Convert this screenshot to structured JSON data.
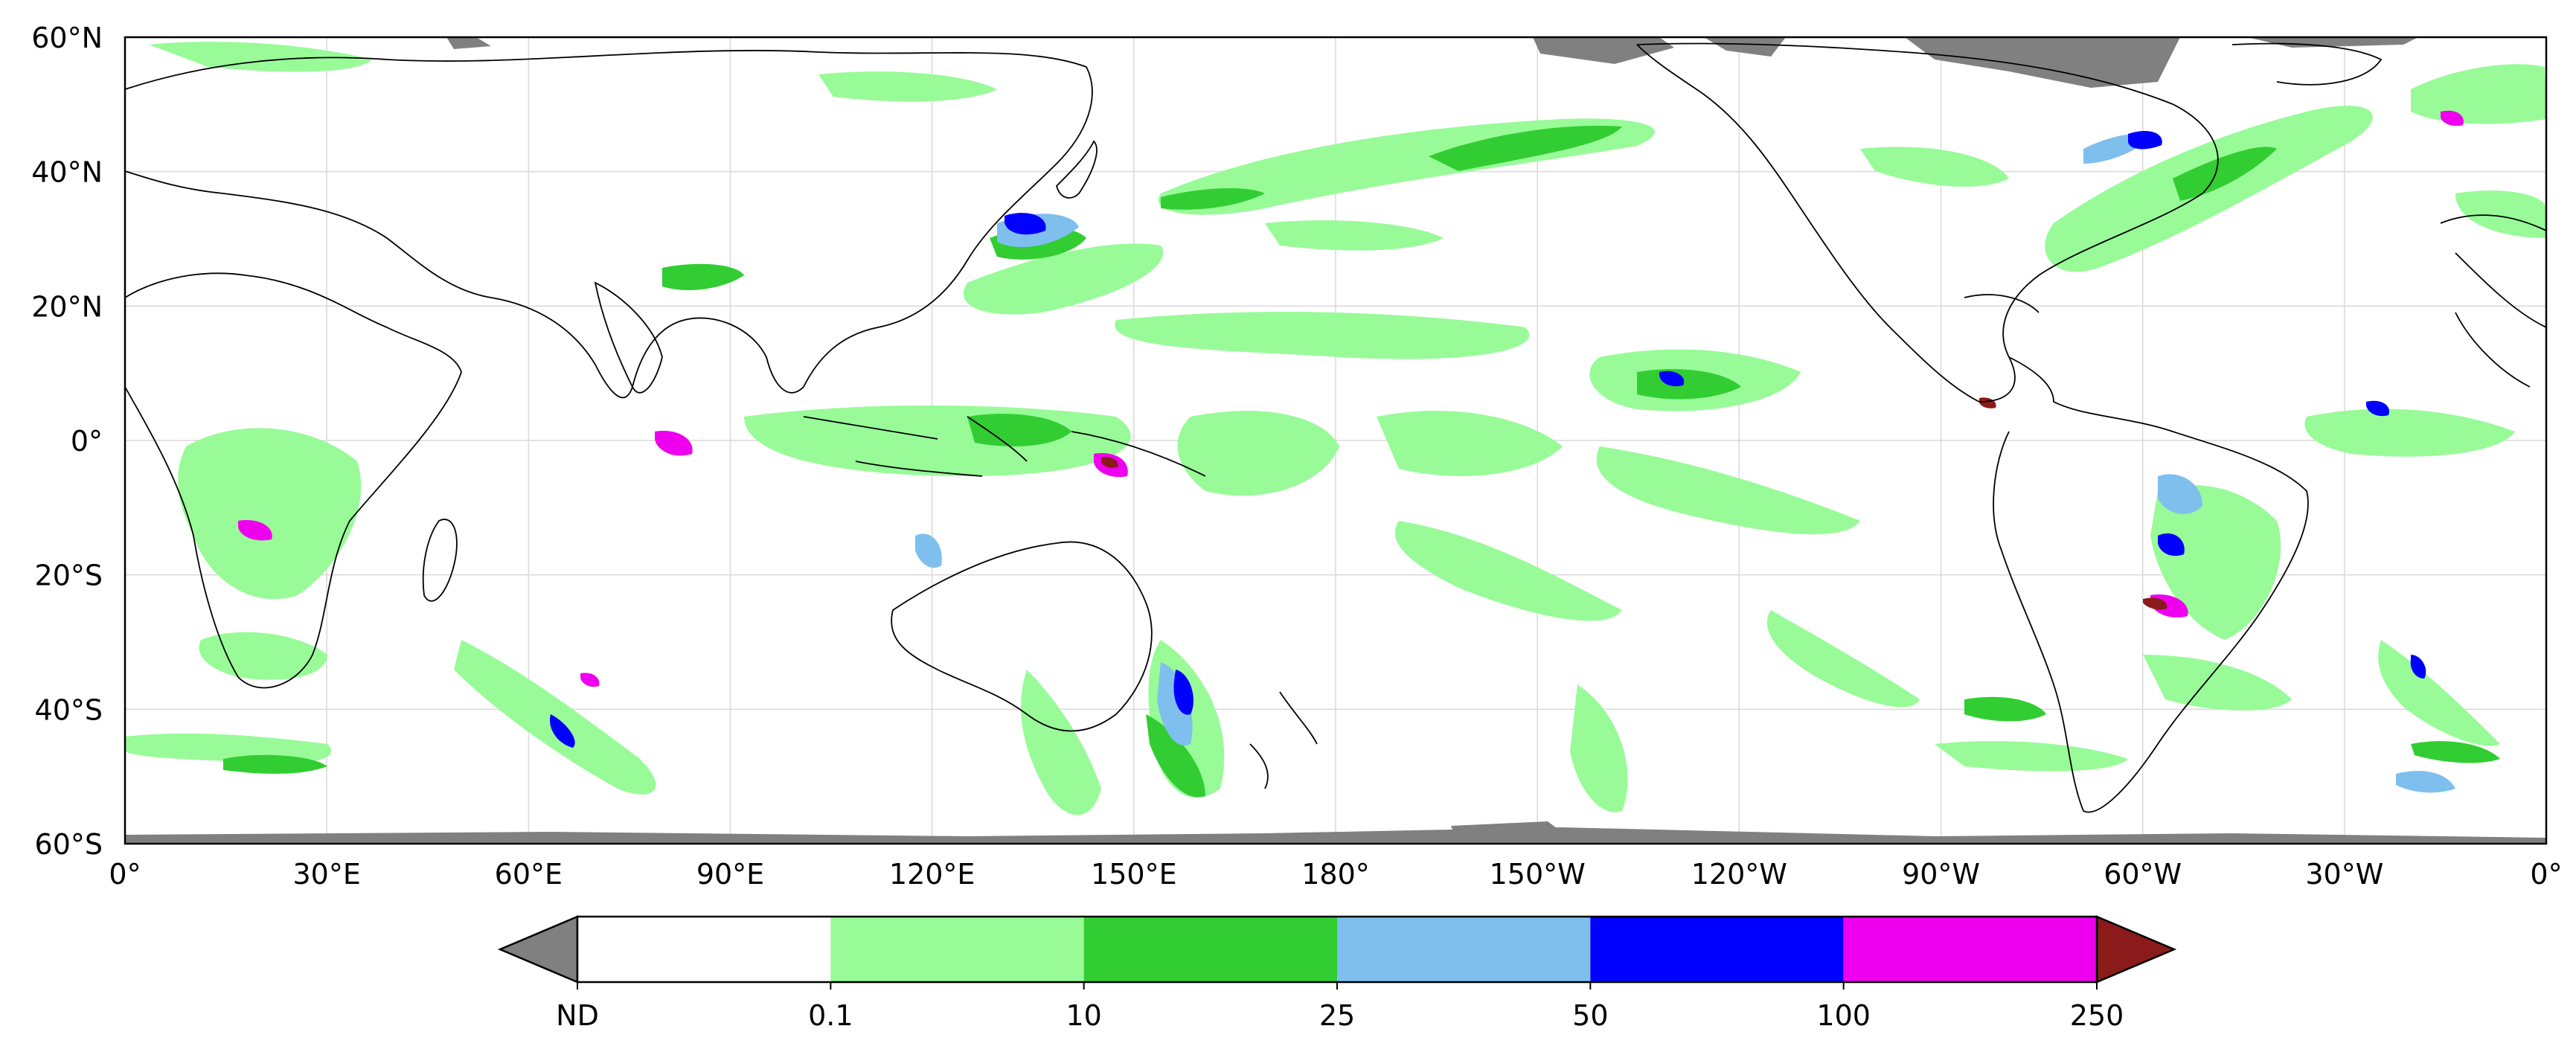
{
  "map": {
    "lat_labels": [
      "60°N",
      "40°N",
      "20°N",
      "0°",
      "20°S",
      "40°S",
      "60°S"
    ],
    "lon_labels": [
      "0°",
      "30°E",
      "60°E",
      "90°E",
      "120°E",
      "150°E",
      "180°",
      "150°W",
      "120°W",
      "90°W",
      "60°W",
      "30°W",
      "0°"
    ],
    "lat_range": [
      -60,
      60
    ],
    "lon_range": [
      0,
      360
    ],
    "grid": true
  },
  "colorbar": {
    "labels": [
      "ND",
      "0.1",
      "10",
      "25",
      "50",
      "100",
      "250"
    ],
    "under_color": "#808080",
    "over_color": "#8b1a1a",
    "bins": [
      {
        "range": "ND–0.1",
        "color": "#ffffff"
      },
      {
        "range": "0.1–10",
        "color": "#98fb98"
      },
      {
        "range": "10–25",
        "color": "#32cd32"
      },
      {
        "range": "25–50",
        "color": "#7fbfee"
      },
      {
        "range": "50–100",
        "color": "#0000ff"
      },
      {
        "range": "100–250",
        "color": "#ee00ee"
      }
    ]
  },
  "colors": {
    "land_outline": "#000000",
    "no_data": "#808080",
    "light_green": "#98fb98",
    "green": "#32cd32",
    "light_blue": "#7fbfee",
    "blue": "#0000ff",
    "magenta": "#ee00ee",
    "dark_red": "#8b1a1a"
  }
}
